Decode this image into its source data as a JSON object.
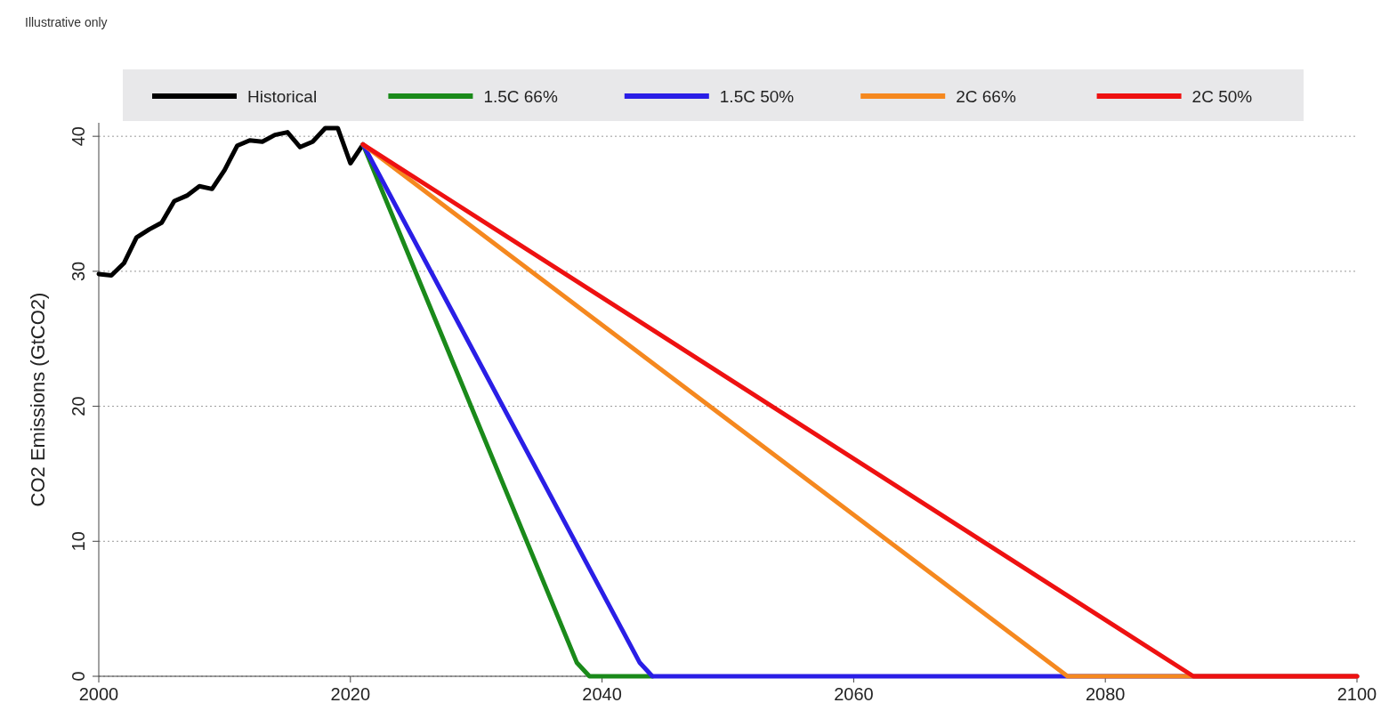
{
  "chart_data": {
    "type": "line",
    "annotations": [
      "Illustrative only"
    ],
    "ylabel": "CO2 Emissions (GtCO2)",
    "xlim": [
      2000,
      2100
    ],
    "xticks": [
      2000,
      2020,
      2040,
      2060,
      2080,
      2100
    ],
    "ylim": [
      0,
      41
    ],
    "yticks": [
      0,
      10,
      20,
      30,
      40
    ],
    "grid": "y",
    "legend": "top",
    "line_style": "solid",
    "marker": "none",
    "series": [
      {
        "name": "Historical",
        "color": "#000000",
        "x": [
          2000,
          2001,
          2002,
          2003,
          2004,
          2005,
          2006,
          2007,
          2008,
          2009,
          2010,
          2011,
          2012,
          2013,
          2014,
          2015,
          2016,
          2017,
          2018,
          2019,
          2020,
          2021
        ],
        "values": [
          29.8,
          29.7,
          30.6,
          32.5,
          33.1,
          33.6,
          35.2,
          35.6,
          36.3,
          36.1,
          37.5,
          39.3,
          39.7,
          39.6,
          40.1,
          40.3,
          39.2,
          39.6,
          40.6,
          40.6,
          38.0,
          39.4
        ]
      },
      {
        "name": "1.5C 66%",
        "color": "#1a8a1a",
        "x": [
          2021,
          2038,
          2039,
          2044
        ],
        "values": [
          39.4,
          1,
          0,
          0
        ]
      },
      {
        "name": "1.5C 50%",
        "color": "#2a1ee6",
        "x": [
          2021,
          2043,
          2044,
          2100
        ],
        "values": [
          39.4,
          1,
          0,
          0
        ]
      },
      {
        "name": "2C 66%",
        "color": "#f5881f",
        "x": [
          2021,
          2077,
          2100
        ],
        "values": [
          39.4,
          0,
          0
        ]
      },
      {
        "name": "2C 50%",
        "color": "#ee1111",
        "x": [
          2021,
          2087,
          2100
        ],
        "values": [
          39.4,
          0,
          0
        ]
      }
    ]
  }
}
